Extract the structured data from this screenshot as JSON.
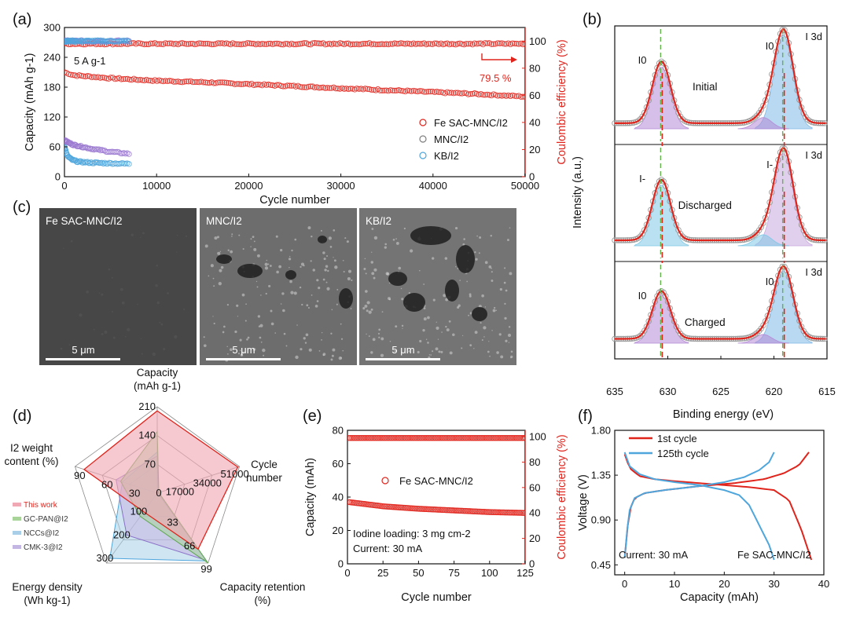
{
  "figure": {
    "panel_labels": [
      "(a)",
      "(b)",
      "(c)",
      "(d)",
      "(e)",
      "(f)"
    ]
  },
  "colors": {
    "red": "#e0241c",
    "purple": "#9a78d0",
    "cyan": "#4ea6dc",
    "pink_fill": "#f0a8b4",
    "green_fill": "#a8d49a",
    "blue_fill": "#a9cfe8",
    "lavender_fill": "#c3b6e2"
  },
  "chart_data": [
    {
      "id": "a",
      "type": "scatter",
      "xlabel": "Cycle number",
      "ylabel": "Capacity (mAh g-1)",
      "y2label": "Coulombic efficiency (%)",
      "xlim": [
        0,
        50000
      ],
      "ylim": [
        0,
        300
      ],
      "y2lim": [
        0,
        110
      ],
      "xticks": [
        "0",
        "10000",
        "20000",
        "30000",
        "40000",
        "50000"
      ],
      "yticks": [
        "0",
        "60",
        "120",
        "180",
        "240",
        "300"
      ],
      "y2ticks": [
        "0",
        "20",
        "40",
        "60",
        "80",
        "100"
      ],
      "annotations": [
        "5 A g-1",
        "79.5 %"
      ],
      "legend_position": "center-right",
      "series": [
        {
          "name": "Fe SAC-MNC/I2",
          "axis": "capacity",
          "x": [
            0,
            1000,
            5000,
            10000,
            15000,
            20000,
            25000,
            30000,
            35000,
            40000,
            45000,
            50000
          ],
          "values": [
            210,
            204,
            198,
            193,
            190,
            186,
            182,
            178,
            174,
            170,
            166,
            161
          ]
        },
        {
          "name": "Fe SAC-MNC/I2",
          "axis": "efficiency",
          "x": [
            0,
            10000,
            20000,
            30000,
            40000,
            50000
          ],
          "values": [
            98,
            98,
            98,
            98,
            98,
            98
          ]
        },
        {
          "name": "MNC/I2",
          "axis": "capacity",
          "x": [
            0,
            500,
            1000,
            2000,
            3000,
            4000,
            5000,
            6000,
            7000
          ],
          "values": [
            73,
            68,
            64,
            60,
            56,
            53,
            50,
            48,
            46
          ]
        },
        {
          "name": "MNC/I2",
          "axis": "efficiency",
          "x": [
            0,
            7000
          ],
          "values": [
            100,
            100
          ]
        },
        {
          "name": "KB/I2",
          "axis": "capacity",
          "x": [
            0,
            300,
            800,
            1500,
            3000,
            5000,
            7000
          ],
          "values": [
            60,
            42,
            34,
            30,
            28,
            27,
            26
          ]
        },
        {
          "name": "KB/I2",
          "axis": "efficiency",
          "x": [
            0,
            7000
          ],
          "values": [
            100,
            100
          ]
        }
      ]
    },
    {
      "id": "b",
      "type": "line",
      "xlabel": "Binding energy (eV)",
      "ylabel": "Intensity (a.u.)",
      "xlim": [
        635,
        615
      ],
      "xticks": [
        "635",
        "630",
        "625",
        "620",
        "615"
      ],
      "panels": [
        {
          "name": "Initial",
          "tag": "I 3d",
          "peak_labels": [
            "I0",
            "I0"
          ],
          "peaks_ev": [
            630.6,
            619.1
          ]
        },
        {
          "name": "Discharged",
          "tag": "I 3d",
          "peak_labels": [
            "I-",
            "I-"
          ],
          "peaks_ev": [
            630.6,
            619.1
          ]
        },
        {
          "name": "Charged",
          "tag": "I 3d",
          "peak_labels": [
            "I0",
            "I0"
          ],
          "peaks_ev": [
            630.6,
            619.1
          ]
        }
      ]
    },
    {
      "id": "c",
      "type": "other",
      "images": [
        {
          "label": "Fe SAC-MNC/I2",
          "scale": "5 μm"
        },
        {
          "label": "MNC/I2",
          "scale": "5 μm"
        },
        {
          "label": "KB/I2",
          "scale": "5 μm"
        }
      ]
    },
    {
      "id": "d",
      "type": "radar",
      "axes": [
        {
          "label_lines": [
            "Capacity",
            "(mAh g-1)"
          ],
          "ticks": [
            "70",
            "140",
            "210"
          ],
          "max": 210
        },
        {
          "label_lines": [
            "Cycle",
            "number"
          ],
          "ticks": [
            "17000",
            "34000",
            "51000"
          ],
          "max": 51000
        },
        {
          "label_lines": [
            "Capacity retention",
            "(%)"
          ],
          "ticks": [
            "33",
            "66",
            "99"
          ],
          "max": 99
        },
        {
          "label_lines": [
            "Energy density",
            "(Wh kg-1)"
          ],
          "ticks": [
            "100",
            "200",
            "300"
          ],
          "max": 300
        },
        {
          "label_lines": [
            "I2 weight",
            "content (%)"
          ],
          "ticks": [
            "30",
            "60",
            "90"
          ],
          "max": 90
        }
      ],
      "center_label": "0",
      "series": [
        {
          "name": "This work",
          "values": [
            200,
            50000,
            79.5,
            80,
            80
          ]
        },
        {
          "name": "GC-PAN@I2",
          "values": [
            150,
            1000,
            99,
            100,
            40
          ]
        },
        {
          "name": "NCCs@I2",
          "values": [
            100,
            500,
            96,
            280,
            38
          ]
        },
        {
          "name": "CMK-3@I2",
          "values": [
            90,
            700,
            95,
            180,
            45
          ]
        }
      ]
    },
    {
      "id": "e",
      "type": "scatter",
      "xlabel": "Cycle number",
      "ylabel": "Capacity (mAh)",
      "y2label": "Coulombic efficiency (%)",
      "xlim": [
        0,
        125
      ],
      "ylim": [
        0,
        80
      ],
      "y2lim": [
        0,
        105
      ],
      "xticks": [
        "0",
        "25",
        "50",
        "75",
        "100",
        "125"
      ],
      "yticks": [
        "0",
        "20",
        "40",
        "60",
        "80"
      ],
      "y2ticks": [
        "0",
        "20",
        "40",
        "60",
        "80",
        "100"
      ],
      "legend": "Fe SAC-MNC/I2",
      "notes": [
        "Iodine loading: 3 mg cm-2",
        "Current: 30 mA"
      ],
      "series": [
        {
          "name": "Fe SAC-MNC/I2",
          "axis": "capacity",
          "x": [
            1,
            25,
            50,
            75,
            100,
            125
          ],
          "values": [
            37,
            34.5,
            33,
            32,
            31,
            30.5
          ]
        },
        {
          "name": "Fe SAC-MNC/I2",
          "axis": "efficiency",
          "x": [
            1,
            125
          ],
          "values": [
            99,
            99
          ]
        }
      ]
    },
    {
      "id": "f",
      "type": "line",
      "xlabel": "Capacity (mAh)",
      "ylabel": "Voltage (V)",
      "xlim": [
        -2,
        40
      ],
      "ylim": [
        0.35,
        1.8
      ],
      "xticks": [
        "0",
        "10",
        "20",
        "30",
        "40"
      ],
      "yticks": [
        "0.45",
        "0.90",
        "1.35",
        "1.80"
      ],
      "notes": [
        "Current: 30 mA",
        "Fe SAC-MNC/I2"
      ],
      "series": [
        {
          "name": "1st cycle",
          "discharge_x": [
            0,
            1,
            3,
            6,
            10,
            15,
            20,
            25,
            30,
            33,
            35.5,
            37.5
          ],
          "discharge_y": [
            1.56,
            1.42,
            1.34,
            1.31,
            1.29,
            1.27,
            1.25,
            1.23,
            1.2,
            1.1,
            0.8,
            0.5
          ],
          "charge_x": [
            0,
            0.5,
            1,
            2,
            4,
            8,
            15,
            22,
            28,
            32,
            35,
            37
          ],
          "charge_y": [
            0.52,
            0.8,
            1.0,
            1.12,
            1.17,
            1.2,
            1.24,
            1.27,
            1.31,
            1.37,
            1.45,
            1.58
          ]
        },
        {
          "name": "125th cycle",
          "discharge_x": [
            0,
            1,
            3,
            6,
            10,
            15,
            20,
            23,
            25,
            27,
            29,
            30
          ],
          "discharge_y": [
            1.58,
            1.44,
            1.36,
            1.31,
            1.28,
            1.25,
            1.2,
            1.15,
            1.05,
            0.85,
            0.65,
            0.5
          ],
          "charge_x": [
            0,
            0.5,
            1,
            2,
            4,
            8,
            15,
            20,
            24,
            27,
            29,
            30
          ],
          "charge_y": [
            0.52,
            0.8,
            1.0,
            1.12,
            1.17,
            1.2,
            1.24,
            1.28,
            1.33,
            1.4,
            1.48,
            1.58
          ]
        }
      ]
    }
  ]
}
